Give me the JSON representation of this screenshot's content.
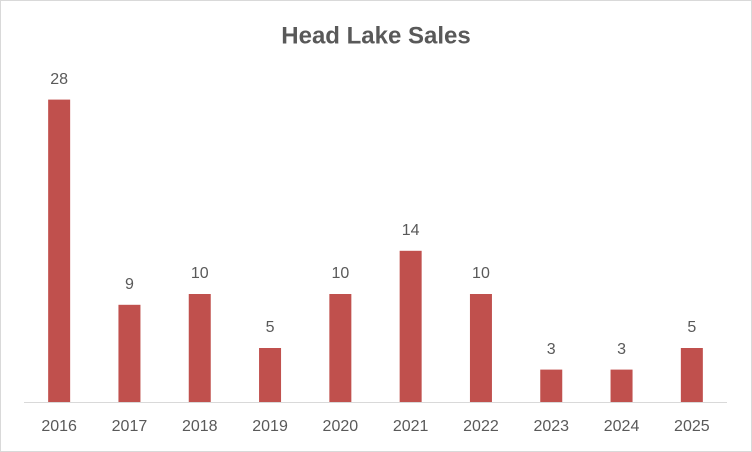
{
  "chart_data": {
    "type": "bar",
    "title": "Head Lake Sales",
    "categories": [
      "2016",
      "2017",
      "2018",
      "2019",
      "2020",
      "2021",
      "2022",
      "2023",
      "2024",
      "2025"
    ],
    "values": [
      28,
      9,
      10,
      5,
      10,
      14,
      10,
      3,
      3,
      5
    ],
    "color": "#c0504d",
    "ylim": [
      0,
      30
    ]
  }
}
